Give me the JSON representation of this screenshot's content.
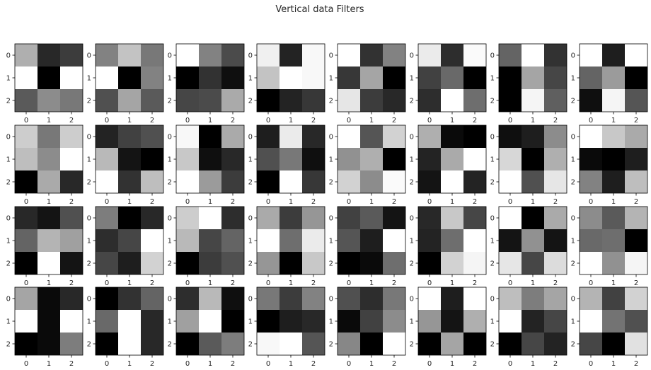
{
  "chart_data": {
    "type": "heatmap",
    "title": "Vertical data Filters",
    "colormap": "gray",
    "value_range": [
      0,
      255
    ],
    "grid_rows": 4,
    "grid_cols": 8,
    "x_ticks": [
      "0",
      "1",
      "2"
    ],
    "y_ticks": [
      "0",
      "1",
      "2"
    ],
    "filters": [
      [
        [
          175,
          40,
          60
        ],
        [
          255,
          0,
          255
        ],
        [
          90,
          140,
          120
        ]
      ],
      [
        [
          130,
          195,
          120
        ],
        [
          255,
          0,
          130
        ],
        [
          80,
          165,
          90
        ]
      ],
      [
        [
          255,
          130,
          75
        ],
        [
          0,
          50,
          15
        ],
        [
          70,
          75,
          170
        ]
      ],
      [
        [
          240,
          35,
          248
        ],
        [
          195,
          255,
          248
        ],
        [
          0,
          35,
          55
        ]
      ],
      [
        [
          255,
          50,
          130
        ],
        [
          55,
          165,
          0
        ],
        [
          230,
          60,
          40
        ]
      ],
      [
        [
          235,
          45,
          250
        ],
        [
          65,
          105,
          0
        ],
        [
          45,
          255,
          110
        ]
      ],
      [
        [
          100,
          255,
          50
        ],
        [
          0,
          165,
          70
        ],
        [
          0,
          245,
          95
        ]
      ],
      [
        [
          255,
          30,
          255
        ],
        [
          100,
          155,
          0
        ],
        [
          15,
          245,
          85
        ]
      ],
      [
        [
          205,
          120,
          205
        ],
        [
          190,
          140,
          255
        ],
        [
          0,
          170,
          40
        ]
      ],
      [
        [
          35,
          65,
          80
        ],
        [
          185,
          20,
          0
        ],
        [
          255,
          50,
          190
        ]
      ],
      [
        [
          248,
          0,
          170
        ],
        [
          200,
          15,
          40
        ],
        [
          255,
          155,
          60
        ]
      ],
      [
        [
          30,
          235,
          40
        ],
        [
          80,
          120,
          15
        ],
        [
          0,
          255,
          55
        ]
      ],
      [
        [
          255,
          85,
          210
        ],
        [
          145,
          175,
          0
        ],
        [
          210,
          140,
          250
        ]
      ],
      [
        [
          175,
          10,
          0
        ],
        [
          35,
          170,
          255
        ],
        [
          20,
          255,
          35
        ]
      ],
      [
        [
          15,
          30,
          140
        ],
        [
          215,
          0,
          175
        ],
        [
          255,
          80,
          230
        ]
      ],
      [
        [
          255,
          200,
          170
        ],
        [
          10,
          0,
          30
        ],
        [
          130,
          30,
          190
        ]
      ],
      [
        [
          40,
          20,
          80
        ],
        [
          100,
          180,
          160
        ],
        [
          0,
          255,
          20
        ]
      ],
      [
        [
          125,
          0,
          40
        ],
        [
          45,
          70,
          255
        ],
        [
          70,
          30,
          210
        ]
      ],
      [
        [
          205,
          255,
          45
        ],
        [
          185,
          70,
          100
        ],
        [
          0,
          60,
          80
        ]
      ],
      [
        [
          170,
          60,
          150
        ],
        [
          255,
          110,
          235
        ],
        [
          150,
          0,
          200
        ]
      ],
      [
        [
          65,
          90,
          20
        ],
        [
          85,
          30,
          255
        ],
        [
          0,
          10,
          110
        ]
      ],
      [
        [
          40,
          200,
          70
        ],
        [
          35,
          110,
          255
        ],
        [
          0,
          210,
          245
        ]
      ],
      [
        [
          255,
          0,
          170
        ],
        [
          20,
          145,
          20
        ],
        [
          230,
          70,
          220
        ]
      ],
      [
        [
          140,
          90,
          180
        ],
        [
          105,
          110,
          0
        ],
        [
          255,
          145,
          245
        ]
      ],
      [
        [
          165,
          10,
          40
        ],
        [
          255,
          10,
          255
        ],
        [
          0,
          10,
          125
        ]
      ],
      [
        [
          0,
          50,
          100
        ],
        [
          105,
          255,
          40
        ],
        [
          0,
          255,
          40
        ]
      ],
      [
        [
          45,
          185,
          15
        ],
        [
          160,
          255,
          0
        ],
        [
          0,
          90,
          125
        ]
      ],
      [
        [
          120,
          60,
          130
        ],
        [
          0,
          30,
          40
        ],
        [
          248,
          255,
          85
        ]
      ],
      [
        [
          80,
          45,
          120
        ],
        [
          10,
          65,
          140
        ],
        [
          135,
          0,
          255
        ]
      ],
      [
        [
          255,
          30,
          255
        ],
        [
          150,
          20,
          175
        ],
        [
          0,
          165,
          0
        ]
      ],
      [
        [
          190,
          125,
          165
        ],
        [
          255,
          35,
          70
        ],
        [
          0,
          70,
          35
        ]
      ],
      [
        [
          180,
          65,
          210
        ],
        [
          255,
          115,
          80
        ],
        [
          70,
          0,
          225
        ]
      ]
    ]
  }
}
